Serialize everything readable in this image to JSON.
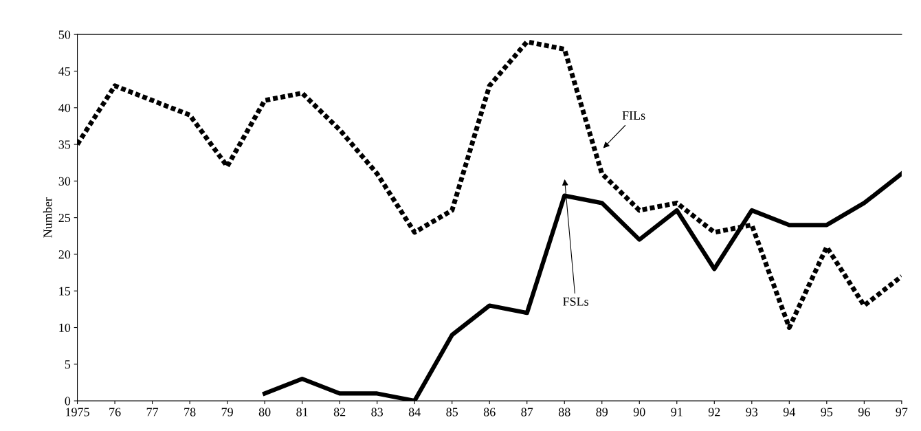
{
  "chart_data": {
    "type": "line",
    "ylabel": "Number",
    "categories": [
      "1975",
      "76",
      "77",
      "78",
      "79",
      "80",
      "81",
      "82",
      "83",
      "84",
      "85",
      "86",
      "87",
      "88",
      "89",
      "90",
      "91",
      "92",
      "93",
      "94",
      "95",
      "96",
      "97"
    ],
    "series": [
      {
        "name": "FILs",
        "color": "#000000",
        "line_style": "dotted",
        "values": [
          35,
          43,
          41,
          39,
          32,
          41,
          42,
          37,
          31,
          23,
          26,
          43,
          49,
          48,
          31,
          26,
          27,
          23,
          24,
          10,
          21,
          13,
          17
        ]
      },
      {
        "name": "FSLs",
        "color": "#000000",
        "line_style": "solid",
        "values": [
          null,
          null,
          null,
          null,
          null,
          1,
          3,
          1,
          1,
          0,
          9,
          13,
          12,
          28,
          27,
          22,
          26,
          18,
          26,
          24,
          24,
          27,
          31
        ]
      }
    ],
    "ylim": [
      0,
      50
    ],
    "yticks": [
      0,
      5,
      10,
      15,
      20,
      25,
      30,
      35,
      40,
      45,
      50
    ],
    "grid": false,
    "legend": false,
    "marker": "none"
  }
}
